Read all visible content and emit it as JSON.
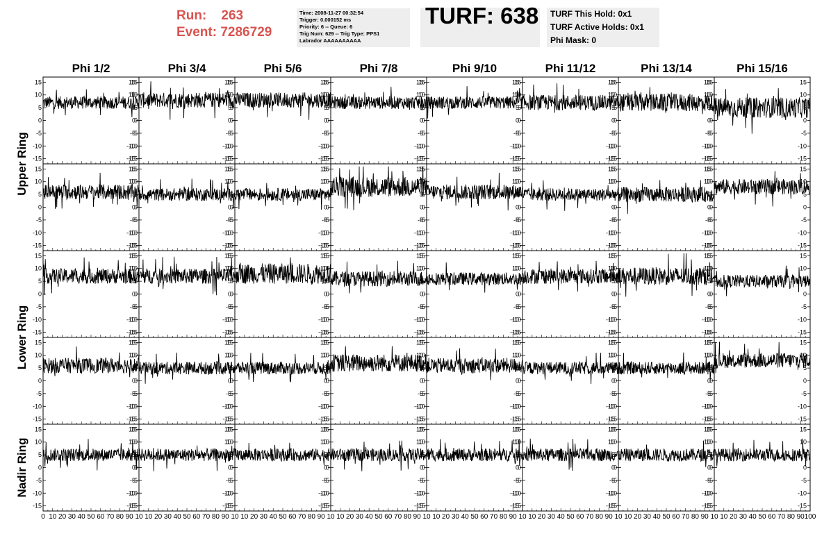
{
  "header": {
    "run_label": "Run:",
    "run_value": "263",
    "event_label": "Event:",
    "event_value": "7286729",
    "info_lines": [
      "Time: 2008-11-27 00:32:54",
      "Trigger: 0.000152 ms",
      "Priority: 6 -- Queue: 6",
      "Trig Num: 629 -- Trig Type: PPS1",
      "Labrador AAAAAAAAAA"
    ],
    "turf_title": "TURF: 638",
    "turf_lines": [
      "TURF This Hold: 0x1",
      "TURF Active Holds: 0x1",
      "Phi Mask: 0"
    ]
  },
  "chart_data": {
    "type": "line",
    "title": "",
    "columns": [
      "Phi 1/2",
      "Phi 3/4",
      "Phi 5/6",
      "Phi 7/8",
      "Phi 9/10",
      "Phi 11/12",
      "Phi 13/14",
      "Phi 15/16"
    ],
    "row_labels": [
      "Upper Ring",
      "Lower Ring",
      "Nadir Ring"
    ],
    "panel_rows": 5,
    "xlim": [
      0,
      100
    ],
    "ylim": [
      -17,
      17
    ],
    "y_ticks": [
      -15,
      -10,
      -5,
      0,
      5,
      10,
      15
    ],
    "y_tick_labels": [
      "-15",
      "-10",
      "-5",
      "0",
      "5",
      "10",
      "15"
    ],
    "x_ticks": [
      0,
      10,
      20,
      30,
      40,
      50,
      60,
      70,
      80,
      90
    ],
    "x_tick_labels": [
      "0",
      "10",
      "20",
      "30",
      "40",
      "50",
      "60",
      "70",
      "80",
      "90",
      "10",
      "10",
      "20",
      "30",
      "40",
      "50",
      "60",
      "70",
      "80",
      "90",
      "10",
      "10",
      "20",
      "30",
      "40",
      "50",
      "60",
      "70",
      "80",
      "90",
      "10",
      "10",
      "20",
      "30",
      "40",
      "50",
      "60",
      "70",
      "80",
      "90",
      "10",
      "10",
      "20",
      "30",
      "40",
      "50",
      "60",
      "70",
      "80",
      "90",
      "10",
      "10",
      "20",
      "30",
      "40",
      "50",
      "60",
      "70",
      "80",
      "90",
      "10",
      "10",
      "20",
      "30",
      "40",
      "50",
      "60",
      "70",
      "80",
      "90",
      "10",
      "10",
      "20",
      "30",
      "40",
      "50",
      "60",
      "70",
      "80",
      "90",
      "100"
    ],
    "n_points": 260,
    "baseline": [
      [
        7,
        8,
        8,
        7,
        7,
        7,
        7,
        5
      ],
      [
        6,
        5,
        5,
        8,
        6,
        5,
        5,
        8
      ],
      [
        7,
        7,
        8,
        6,
        6,
        7,
        7,
        5
      ],
      [
        6,
        5,
        5,
        7,
        6,
        5,
        5,
        8
      ],
      [
        5,
        5,
        5,
        5,
        5,
        5,
        5,
        5
      ]
    ],
    "amplitude": [
      [
        2.5,
        3,
        3,
        2.5,
        2.5,
        3,
        3.5,
        4
      ],
      [
        3,
        2.5,
        2.5,
        4,
        3,
        2.5,
        3,
        3
      ],
      [
        3,
        3,
        4,
        3,
        2.5,
        3,
        3.5,
        2.5
      ],
      [
        3,
        2.5,
        2.5,
        3.5,
        3,
        2.5,
        2.5,
        3
      ],
      [
        2.5,
        2.5,
        2.5,
        2.5,
        2.5,
        2.5,
        2.5,
        2.5
      ]
    ]
  }
}
